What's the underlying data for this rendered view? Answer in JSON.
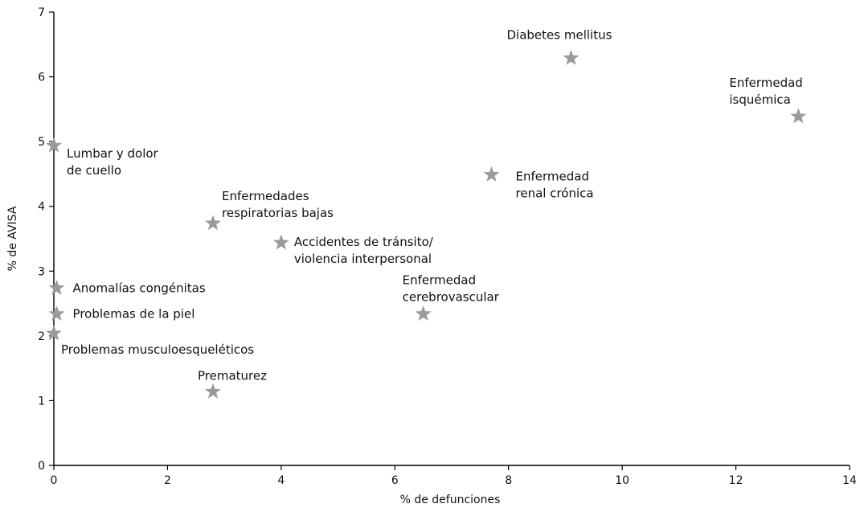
{
  "chart_data": {
    "type": "scatter",
    "title": "",
    "xlabel": "% de defunciones",
    "ylabel": "% de AVISA",
    "xlim": [
      0,
      14
    ],
    "ylim": [
      0,
      7
    ],
    "x_ticks": [
      0,
      2,
      4,
      6,
      8,
      10,
      12,
      14
    ],
    "y_ticks": [
      0,
      1,
      2,
      3,
      4,
      5,
      6,
      7
    ],
    "grid": false,
    "marker": "star",
    "marker_color": "#9a9a9a",
    "points": [
      {
        "label": [
          "Diabetes mellitus"
        ],
        "x": 9.1,
        "y": 6.3
      },
      {
        "label": [
          "Enfermedad",
          "isquémica"
        ],
        "x": 13.1,
        "y": 5.4
      },
      {
        "label": [
          "Lumbar y dolor",
          "de cuello"
        ],
        "x": 0.0,
        "y": 4.95
      },
      {
        "label": [
          "Enfermedad",
          "renal crónica"
        ],
        "x": 7.7,
        "y": 4.5
      },
      {
        "label": [
          "Enfermedades",
          "respiratorias bajas"
        ],
        "x": 2.8,
        "y": 3.75
      },
      {
        "label": [
          "Accidentes de tránsito/",
          "violencia interpersonal"
        ],
        "x": 4.0,
        "y": 3.45
      },
      {
        "label": [
          "Anomalías congénitas"
        ],
        "x": 0.05,
        "y": 2.75
      },
      {
        "label": [
          "Enfermedad",
          "cerebrovascular"
        ],
        "x": 6.5,
        "y": 2.35
      },
      {
        "label": [
          "Problemas de la piel"
        ],
        "x": 0.05,
        "y": 2.35
      },
      {
        "label": [
          "Problemas musculoesqueléticos"
        ],
        "x": 0.0,
        "y": 2.05
      },
      {
        "label": [
          "Prematurez"
        ],
        "x": 2.8,
        "y": 1.15
      }
    ]
  }
}
